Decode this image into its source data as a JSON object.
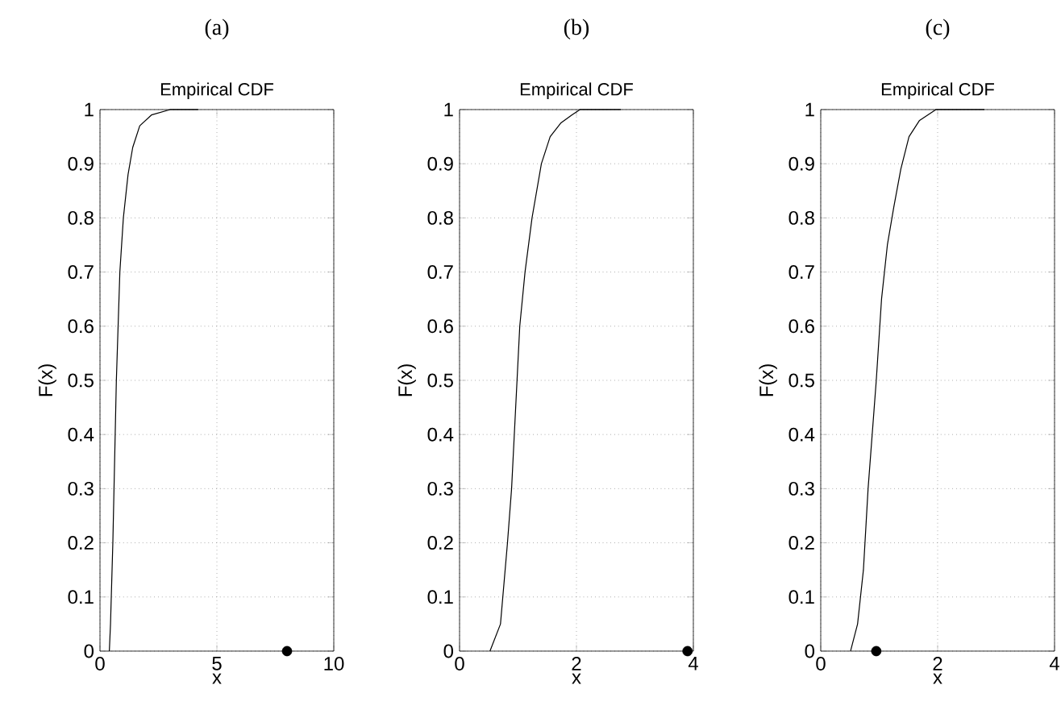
{
  "chart_data": [
    {
      "type": "line",
      "title": "(a)",
      "subtitle": "Empirical CDF",
      "xlabel": "x",
      "ylabel": "F(x)",
      "xlim": [
        0,
        10
      ],
      "xticks": [
        0,
        5,
        10
      ],
      "ylim": [
        0,
        1
      ],
      "yticks": [
        0,
        0.1,
        0.2,
        0.3,
        0.4,
        0.5,
        0.6,
        0.7,
        0.8,
        0.9,
        1
      ],
      "grid": true,
      "series": [
        {
          "type": "line",
          "color": "#000000",
          "x": [
            0.4,
            0.45,
            0.55,
            0.7,
            0.85,
            1.0,
            1.2,
            1.4,
            1.7,
            2.2,
            3,
            4.2
          ],
          "values": [
            0,
            0.05,
            0.2,
            0.5,
            0.7,
            0.8,
            0.88,
            0.93,
            0.97,
            0.99,
            1,
            1
          ]
        },
        {
          "type": "scatter",
          "marker": "circle",
          "color": "#000000",
          "x": [
            8
          ],
          "values": [
            0
          ]
        }
      ]
    },
    {
      "type": "line",
      "title": "(b)",
      "subtitle": "Empirical CDF",
      "xlabel": "x",
      "ylabel": "F(x)",
      "xlim": [
        0,
        4
      ],
      "xticks": [
        0,
        2,
        4
      ],
      "ylim": [
        0,
        1
      ],
      "yticks": [
        0,
        0.1,
        0.2,
        0.3,
        0.4,
        0.5,
        0.6,
        0.7,
        0.8,
        0.9,
        1
      ],
      "grid": true,
      "series": [
        {
          "type": "line",
          "color": "#000000",
          "x": [
            0.52,
            0.7,
            0.82,
            0.89,
            0.96,
            1.03,
            1.12,
            1.24,
            1.4,
            1.55,
            1.73,
            1.92,
            2.06,
            2.76
          ],
          "values": [
            0,
            0.05,
            0.2,
            0.3,
            0.45,
            0.6,
            0.7,
            0.8,
            0.9,
            0.95,
            0.975,
            0.99,
            1,
            1
          ]
        },
        {
          "type": "scatter",
          "marker": "circle",
          "color": "#000000",
          "x": [
            3.9
          ],
          "values": [
            0
          ]
        }
      ]
    },
    {
      "type": "line",
      "title": "(c)",
      "subtitle": "Empirical CDF",
      "xlabel": "x",
      "ylabel": "F(x)",
      "xlim": [
        0,
        4
      ],
      "xticks": [
        0,
        2,
        4
      ],
      "ylim": [
        0,
        1
      ],
      "yticks": [
        0,
        0.1,
        0.2,
        0.3,
        0.4,
        0.5,
        0.6,
        0.7,
        0.8,
        0.9,
        1
      ],
      "grid": true,
      "series": [
        {
          "type": "line",
          "color": "#000000",
          "x": [
            0.51,
            0.63,
            0.73,
            0.81,
            0.95,
            1.04,
            1.14,
            1.25,
            1.37,
            1.51,
            1.69,
            1.97,
            2.8
          ],
          "values": [
            0,
            0.05,
            0.15,
            0.3,
            0.5,
            0.65,
            0.75,
            0.82,
            0.89,
            0.95,
            0.98,
            1,
            1
          ]
        },
        {
          "type": "scatter",
          "marker": "circle",
          "color": "#000000",
          "x": [
            0.95
          ],
          "values": [
            0
          ]
        }
      ]
    }
  ]
}
